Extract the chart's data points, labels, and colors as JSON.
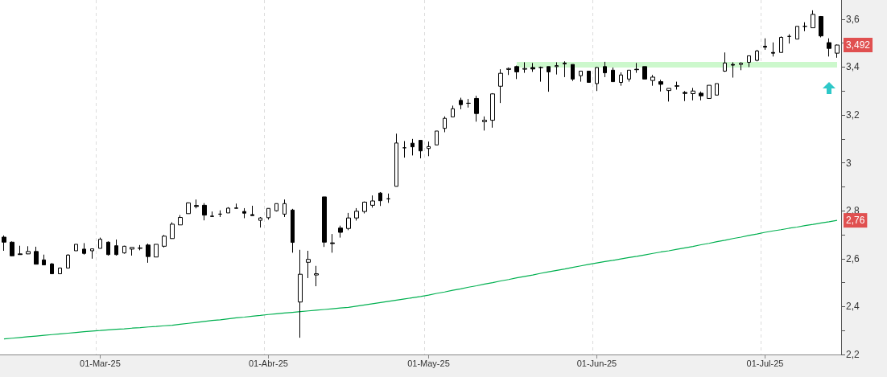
{
  "chart_data": {
    "type": "candlestick",
    "categories": [
      null,
      null,
      null,
      null,
      null,
      null,
      null,
      null,
      null,
      null,
      null,
      null,
      "01-Mar-25",
      null,
      null,
      null,
      null,
      null,
      null,
      null,
      null,
      null,
      null,
      null,
      null,
      null,
      null,
      null,
      null,
      null,
      null,
      null,
      null,
      "01-Abr-25",
      null,
      null,
      null,
      null,
      null,
      null,
      null,
      null,
      null,
      null,
      null,
      null,
      null,
      null,
      null,
      null,
      null,
      null,
      null,
      "01-May-25",
      null,
      null,
      null,
      null,
      null,
      null,
      null,
      null,
      null,
      null,
      null,
      null,
      null,
      null,
      null,
      null,
      null,
      null,
      null,
      null,
      "01-Jun-25",
      null,
      null,
      null,
      null,
      null,
      null,
      null,
      null,
      null,
      null,
      null,
      null,
      null,
      null,
      null,
      null,
      null,
      null,
      null,
      null,
      "01-Jul-25",
      null,
      null,
      null,
      null,
      null,
      null,
      null,
      null,
      null
    ],
    "series": [
      {
        "type": "candlestick",
        "color": "#000000",
        "ohlc": [
          [
            2.69,
            2.697,
            2.633,
            2.669
          ],
          [
            2.669,
            2.672,
            2.611,
            2.612
          ],
          [
            2.62,
            2.654,
            2.617,
            2.617
          ],
          [
            2.62,
            2.652,
            2.619,
            2.63
          ],
          [
            2.63,
            2.65,
            2.577,
            2.577
          ],
          [
            2.595,
            2.617,
            2.574,
            2.574
          ],
          [
            2.578,
            2.582,
            2.537,
            2.537
          ],
          [
            2.537,
            2.563,
            2.537,
            2.561
          ],
          [
            2.561,
            2.619,
            2.561,
            2.615
          ],
          [
            2.633,
            2.66,
            2.633,
            2.66
          ],
          [
            2.64,
            2.665,
            2.617,
            2.622
          ],
          [
            2.633,
            2.641,
            2.6,
            2.641
          ],
          [
            2.643,
            2.688,
            2.643,
            2.681
          ],
          [
            2.669,
            2.672,
            2.613,
            2.617
          ],
          [
            2.654,
            2.68,
            2.613,
            2.617
          ],
          [
            2.624,
            2.654,
            2.621,
            2.652
          ],
          [
            2.64,
            2.647,
            2.613,
            2.647
          ],
          [
            2.643,
            2.657,
            2.635,
            2.645
          ],
          [
            2.657,
            2.663,
            2.583,
            2.609
          ],
          [
            2.607,
            2.66,
            2.607,
            2.66
          ],
          [
            2.652,
            2.699,
            2.647,
            2.694
          ],
          [
            2.684,
            2.752,
            2.683,
            2.744
          ],
          [
            2.741,
            2.782,
            2.741,
            2.772
          ],
          [
            2.788,
            2.835,
            2.788,
            2.833
          ],
          [
            2.822,
            2.847,
            2.81,
            2.818
          ],
          [
            2.823,
            2.832,
            2.76,
            2.782
          ],
          [
            2.776,
            2.797,
            2.774,
            2.778
          ],
          [
            2.786,
            2.802,
            2.774,
            2.786
          ],
          [
            2.791,
            2.815,
            2.791,
            2.811
          ],
          [
            2.81,
            2.83,
            2.81,
            2.812
          ],
          [
            2.797,
            2.811,
            2.769,
            2.79
          ],
          [
            2.784,
            2.821,
            2.78,
            2.78
          ],
          [
            2.76,
            2.774,
            2.73,
            2.77
          ],
          [
            2.771,
            2.81,
            2.763,
            2.81
          ],
          [
            2.8,
            2.83,
            2.797,
            2.83
          ],
          [
            2.786,
            2.847,
            2.774,
            2.83
          ],
          [
            2.803,
            2.808,
            2.625,
            2.668
          ],
          [
            2.419,
            2.637,
            2.27,
            2.535
          ],
          [
            2.585,
            2.633,
            2.519,
            2.597
          ],
          [
            2.532,
            2.57,
            2.485,
            2.537
          ],
          [
            2.858,
            2.858,
            2.649,
            2.669
          ],
          [
            2.666,
            2.703,
            2.625,
            2.663
          ],
          [
            2.728,
            2.738,
            2.688,
            2.71
          ],
          [
            2.726,
            2.791,
            2.719,
            2.77
          ],
          [
            2.77,
            2.811,
            2.759,
            2.798
          ],
          [
            2.797,
            2.839,
            2.789,
            2.836
          ],
          [
            2.823,
            2.864,
            2.813,
            2.841
          ],
          [
            2.874,
            2.878,
            2.82,
            2.842
          ],
          [
            2.85,
            2.872,
            2.833,
            2.85
          ],
          [
            2.902,
            3.122,
            2.902,
            3.083
          ],
          [
            3.063,
            3.091,
            3.022,
            3.063
          ],
          [
            3.082,
            3.1,
            3.031,
            3.067
          ],
          [
            3.094,
            3.094,
            3.019,
            3.05
          ],
          [
            3.06,
            3.089,
            3.028,
            3.068
          ],
          [
            3.075,
            3.133,
            3.075,
            3.133
          ],
          [
            3.144,
            3.194,
            3.128,
            3.186
          ],
          [
            3.192,
            3.239,
            3.192,
            3.226
          ],
          [
            3.261,
            3.272,
            3.224,
            3.243
          ],
          [
            3.249,
            3.267,
            3.231,
            3.249
          ],
          [
            3.269,
            3.28,
            3.172,
            3.206
          ],
          [
            3.172,
            3.194,
            3.135,
            3.178
          ],
          [
            3.178,
            3.291,
            3.147,
            3.288
          ],
          [
            3.32,
            3.391,
            3.25,
            3.374
          ],
          [
            3.39,
            3.398,
            3.367,
            3.394
          ],
          [
            3.402,
            3.406,
            3.35,
            3.38
          ],
          [
            3.391,
            3.42,
            3.376,
            3.394
          ],
          [
            3.398,
            3.417,
            3.38,
            3.392
          ],
          [
            3.398,
            3.402,
            3.339,
            3.398
          ],
          [
            3.402,
            3.402,
            3.297,
            3.38
          ],
          [
            3.402,
            3.42,
            3.369,
            3.406
          ],
          [
            3.413,
            3.424,
            3.358,
            3.417
          ],
          [
            3.411,
            3.411,
            3.342,
            3.35
          ],
          [
            3.364,
            3.383,
            3.339,
            3.383
          ],
          [
            3.383,
            3.383,
            3.336,
            3.336
          ],
          [
            3.331,
            3.4,
            3.3,
            3.398
          ],
          [
            3.402,
            3.422,
            3.358,
            3.376
          ],
          [
            3.387,
            3.398,
            3.339,
            3.339
          ],
          [
            3.336,
            3.378,
            3.322,
            3.367
          ],
          [
            3.35,
            3.387,
            3.339,
            3.387
          ],
          [
            3.391,
            3.417,
            3.376,
            3.389
          ],
          [
            3.402,
            3.402,
            3.35,
            3.35
          ],
          [
            3.344,
            3.367,
            3.322,
            3.358
          ],
          [
            3.339,
            3.347,
            3.298,
            3.328
          ],
          [
            3.302,
            3.311,
            3.256,
            3.311
          ],
          [
            3.322,
            3.339,
            3.306,
            3.32
          ],
          [
            3.294,
            3.3,
            3.258,
            3.29
          ],
          [
            3.289,
            3.313,
            3.261,
            3.3
          ],
          [
            3.291,
            3.298,
            3.261,
            3.28
          ],
          [
            3.269,
            3.324,
            3.269,
            3.324
          ],
          [
            3.283,
            3.331,
            3.283,
            3.331
          ],
          [
            3.383,
            3.461,
            3.38,
            3.417
          ],
          [
            3.411,
            3.42,
            3.356,
            3.408
          ],
          [
            3.411,
            3.42,
            3.387,
            3.416
          ],
          [
            3.42,
            3.447,
            3.4,
            3.447
          ],
          [
            3.428,
            3.472,
            3.424,
            3.467
          ],
          [
            3.487,
            3.52,
            3.472,
            3.483
          ],
          [
            3.461,
            3.503,
            3.444,
            3.458
          ],
          [
            3.461,
            3.528,
            3.461,
            3.524
          ],
          [
            3.528,
            3.537,
            3.498,
            3.528
          ],
          [
            3.517,
            3.57,
            3.517,
            3.57
          ],
          [
            3.57,
            3.587,
            3.55,
            3.57
          ],
          [
            3.564,
            3.637,
            3.564,
            3.62
          ],
          [
            3.611,
            3.613,
            3.524,
            3.53
          ],
          [
            3.502,
            3.52,
            3.444,
            3.478
          ],
          [
            3.458,
            3.494,
            3.439,
            3.492
          ]
        ]
      },
      {
        "type": "line",
        "color": "#00b050",
        "values": [
          2.265,
          2.268,
          2.271,
          2.274,
          2.277,
          2.28,
          2.283,
          2.286,
          2.289,
          2.292,
          2.295,
          2.298,
          2.3,
          2.303,
          2.305,
          2.307,
          2.31,
          2.312,
          2.315,
          2.317,
          2.32,
          2.322,
          2.326,
          2.33,
          2.334,
          2.338,
          2.342,
          2.345,
          2.349,
          2.353,
          2.356,
          2.36,
          2.363,
          2.367,
          2.37,
          2.373,
          2.376,
          2.379,
          2.382,
          2.385,
          2.388,
          2.391,
          2.394,
          2.397,
          2.402,
          2.407,
          2.412,
          2.417,
          2.422,
          2.427,
          2.432,
          2.437,
          2.442,
          2.448,
          2.455,
          2.461,
          2.468,
          2.474,
          2.481,
          2.487,
          2.494,
          2.5,
          2.507,
          2.513,
          2.52,
          2.526,
          2.532,
          2.539,
          2.545,
          2.551,
          2.557,
          2.564,
          2.57,
          2.576,
          2.582,
          2.588,
          2.593,
          2.599,
          2.605,
          2.61,
          2.616,
          2.622,
          2.628,
          2.633,
          2.639,
          2.645,
          2.651,
          2.658,
          2.664,
          2.671,
          2.677,
          2.684,
          2.69,
          2.697,
          2.703,
          2.71,
          2.716,
          2.721,
          2.727,
          2.732,
          2.738,
          2.743,
          2.749,
          2.754,
          2.76
        ]
      },
      {
        "type": "line",
        "color": "#ccf8cc",
        "values": [
          null,
          null,
          null,
          null,
          null,
          null,
          null,
          null,
          null,
          null,
          null,
          null,
          null,
          null,
          null,
          null,
          null,
          null,
          null,
          null,
          null,
          null,
          null,
          null,
          null,
          null,
          null,
          null,
          null,
          null,
          null,
          null,
          null,
          null,
          null,
          null,
          null,
          null,
          null,
          null,
          null,
          null,
          null,
          null,
          null,
          null,
          null,
          null,
          null,
          null,
          null,
          null,
          null,
          null,
          null,
          null,
          null,
          null,
          null,
          null,
          null,
          null,
          null,
          null,
          3.41,
          3.41,
          3.41,
          3.41,
          3.41,
          3.41,
          3.41,
          3.41,
          3.41,
          3.41,
          3.41,
          3.41,
          3.41,
          3.41,
          3.41,
          3.41,
          3.41,
          3.41,
          3.41,
          3.41,
          3.41,
          3.41,
          3.41,
          3.41,
          3.41,
          3.41,
          3.41,
          3.41,
          3.41,
          3.41,
          3.41,
          3.41,
          3.41,
          3.41,
          3.41,
          3.41,
          3.41,
          3.41,
          3.41,
          3.41,
          3.41
        ]
      }
    ],
    "annotations": [
      {
        "text": "3,492",
        "y": 3.492
      },
      {
        "text": "2,76",
        "y": 2.76
      }
    ],
    "ylim": [
      2.2,
      3.68
    ],
    "yticks": [
      {
        "value": 2.2,
        "label": "2,2"
      },
      {
        "value": 2.3,
        "label": null
      },
      {
        "value": 2.4,
        "label": "2,4"
      },
      {
        "value": 2.5,
        "label": null
      },
      {
        "value": 2.6,
        "label": "2,6"
      },
      {
        "value": 2.7,
        "label": null
      },
      {
        "value": 2.8,
        "label": "2,8"
      },
      {
        "value": 2.9,
        "label": null
      },
      3,
      {
        "value": 3.1,
        "label": null
      },
      {
        "value": 3.2,
        "label": "3,2"
      },
      {
        "value": 3.3,
        "label": null
      },
      {
        "value": 3.4,
        "label": "3,4"
      },
      {
        "value": 3.5,
        "label": null
      },
      {
        "value": 3.6,
        "label": "3,6"
      }
    ],
    "grid": true,
    "marker": "none"
  }
}
